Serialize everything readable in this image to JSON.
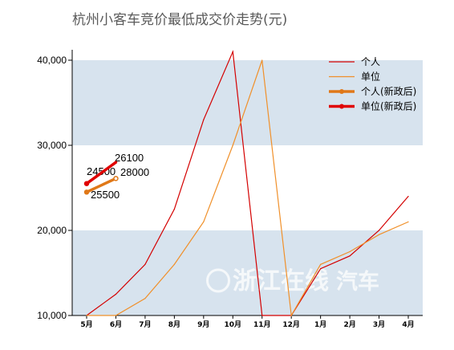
{
  "chart_data": {
    "type": "line",
    "title": "杭州小客车竞价最低成交价走势(元)",
    "categories": [
      "5月",
      "6月",
      "7月",
      "8月",
      "9月",
      "10月",
      "11月",
      "12月",
      "1月",
      "2月",
      "3月",
      "4月"
    ],
    "ylim": [
      10000,
      42000
    ],
    "yticks": [
      "10,000",
      "20,000",
      "30,000",
      "40,000"
    ],
    "ytick_values": [
      10000,
      20000,
      30000,
      40000
    ],
    "grid": "alternating horizontal bands",
    "legend_position": "top-right",
    "series": [
      {
        "name": "个人",
        "color": "#d40000",
        "values": [
          10000,
          12500,
          16000,
          22500,
          33000,
          41000,
          10000,
          10000,
          15500,
          17000,
          20000,
          24000
        ]
      },
      {
        "name": "单位",
        "color": "#f0902a",
        "values": [
          10000,
          10000,
          12000,
          16000,
          21000,
          30000,
          40000,
          10000,
          16000,
          17500,
          19500,
          21000
        ]
      }
    ],
    "new_policy_series": [
      {
        "name": "个人(新政后)",
        "color": "#e07818",
        "values": [
          24500,
          26100
        ],
        "labels": [
          "24500",
          "26100"
        ]
      },
      {
        "name": "单位(新政后)",
        "color": "#e00000",
        "values": [
          25500,
          28000
        ],
        "labels": [
          "25500",
          "28000"
        ]
      }
    ]
  },
  "watermark": {
    "text": "浙江在线",
    "sub": "汽车"
  }
}
